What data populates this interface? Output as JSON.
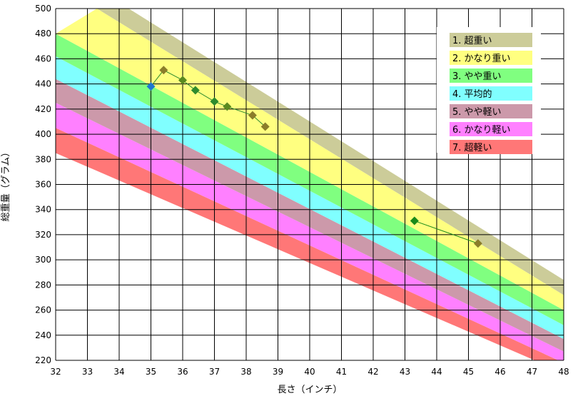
{
  "chart_data": {
    "type": "line",
    "xlabel": "長さ（インチ）",
    "ylabel": "総重量（グラム）",
    "xlim": [
      32,
      48
    ],
    "ylim": [
      220,
      500
    ],
    "x_ticks": [
      32,
      33,
      34,
      35,
      36,
      37,
      38,
      39,
      40,
      41,
      42,
      43,
      44,
      45,
      46,
      47,
      48
    ],
    "y_ticks": [
      220,
      240,
      260,
      280,
      300,
      320,
      340,
      360,
      380,
      400,
      420,
      440,
      460,
      480,
      500
    ],
    "grid": true,
    "legend_position": "top-right",
    "bands": [
      {
        "name": "1. 超重い",
        "color": "#cccc99",
        "lower": [
          [
            33.3,
            500
          ],
          [
            48,
            272
          ]
        ],
        "upper": [
          [
            34.3,
            500
          ],
          [
            48,
            284
          ]
        ]
      },
      {
        "name": "2. かなり重い",
        "color": "#ffff80",
        "lower": [
          [
            32.0,
            480
          ],
          [
            48,
            260
          ]
        ],
        "upper": [
          [
            33.3,
            500
          ],
          [
            48,
            272
          ]
        ]
      },
      {
        "name": "3. やや重い",
        "color": "#80ff80",
        "lower": [
          [
            32.0,
            462
          ],
          [
            48,
            248
          ]
        ],
        "upper": [
          [
            32.0,
            480
          ],
          [
            48,
            260
          ]
        ]
      },
      {
        "name": "4. 平均的",
        "color": "#80ffff",
        "lower": [
          [
            32.0,
            444
          ],
          [
            48,
            237
          ]
        ],
        "upper": [
          [
            32.0,
            462
          ],
          [
            48,
            248
          ]
        ]
      },
      {
        "name": "5. やや軽い",
        "color": "#cc99aa",
        "lower": [
          [
            32.0,
            425
          ],
          [
            48,
            227
          ]
        ],
        "upper": [
          [
            32.0,
            444
          ],
          [
            48,
            237
          ]
        ]
      },
      {
        "name": "6. かなり軽い",
        "color": "#ff80ff",
        "lower": [
          [
            32.0,
            405
          ],
          [
            48,
            218
          ]
        ],
        "upper": [
          [
            32.0,
            425
          ],
          [
            48,
            227
          ]
        ]
      },
      {
        "name": "7. 超軽い",
        "color": "#ff7777",
        "lower": [
          [
            32.0,
            385
          ],
          [
            48,
            210
          ]
        ],
        "upper": [
          [
            32.0,
            405
          ],
          [
            48,
            218
          ]
        ]
      }
    ],
    "series": [
      {
        "points": [
          {
            "x": 35.0,
            "y": 438,
            "color": "#1f77d0"
          },
          {
            "x": 35.4,
            "y": 451,
            "color": "#8b7d2a"
          },
          {
            "x": 36.0,
            "y": 443,
            "color": "#5a8a20"
          },
          {
            "x": 36.4,
            "y": 435,
            "color": "#2e8b2e"
          },
          {
            "x": 37.0,
            "y": 426,
            "color": "#2e8b2e"
          },
          {
            "x": 37.4,
            "y": 422,
            "color": "#5a8a20"
          },
          {
            "x": 38.2,
            "y": 415,
            "color": "#8b7d2a"
          },
          {
            "x": 38.6,
            "y": 406,
            "color": "#8b7d2a"
          }
        ],
        "line_color": "#2e8b2e"
      },
      {
        "points": [
          {
            "x": 43.3,
            "y": 331,
            "color": "#1a8a1a"
          },
          {
            "x": 45.3,
            "y": 313,
            "color": "#8b7d2a"
          }
        ],
        "line_color": "#1a8a1a"
      }
    ]
  }
}
